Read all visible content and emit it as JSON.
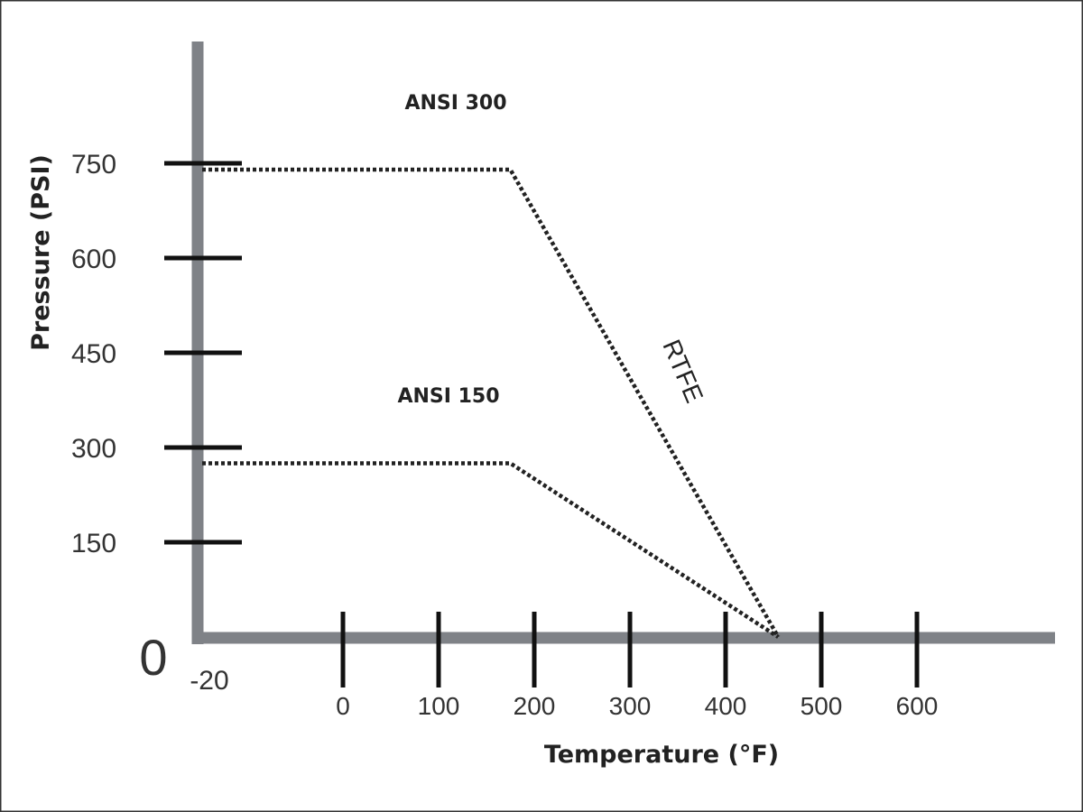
{
  "chart_data": {
    "type": "line",
    "xlabel": "Temperature (°F)",
    "ylabel": "Pressure (PSI)",
    "x_ticks": [
      "0",
      "100",
      "200",
      "300",
      "400",
      "500",
      "600"
    ],
    "y_ticks": [
      "750",
      "600",
      "450",
      "300",
      "150"
    ],
    "origin_label": "0",
    "x_min_label": "-20",
    "xlim": [
      -20,
      700
    ],
    "ylim": [
      0,
      800
    ],
    "grid": false,
    "series": [
      {
        "name": "ANSI 300",
        "x": [
          -20,
          175,
          455
        ],
        "y": [
          740,
          740,
          0
        ]
      },
      {
        "name": "ANSI 150",
        "x": [
          -20,
          175,
          455
        ],
        "y": [
          275,
          275,
          0
        ]
      }
    ],
    "annotations": [
      {
        "text": "RTFE"
      }
    ],
    "colors": {
      "axis": "#7f8287",
      "ticks": "#111111",
      "lines": "#222222",
      "border": "#333333"
    }
  }
}
